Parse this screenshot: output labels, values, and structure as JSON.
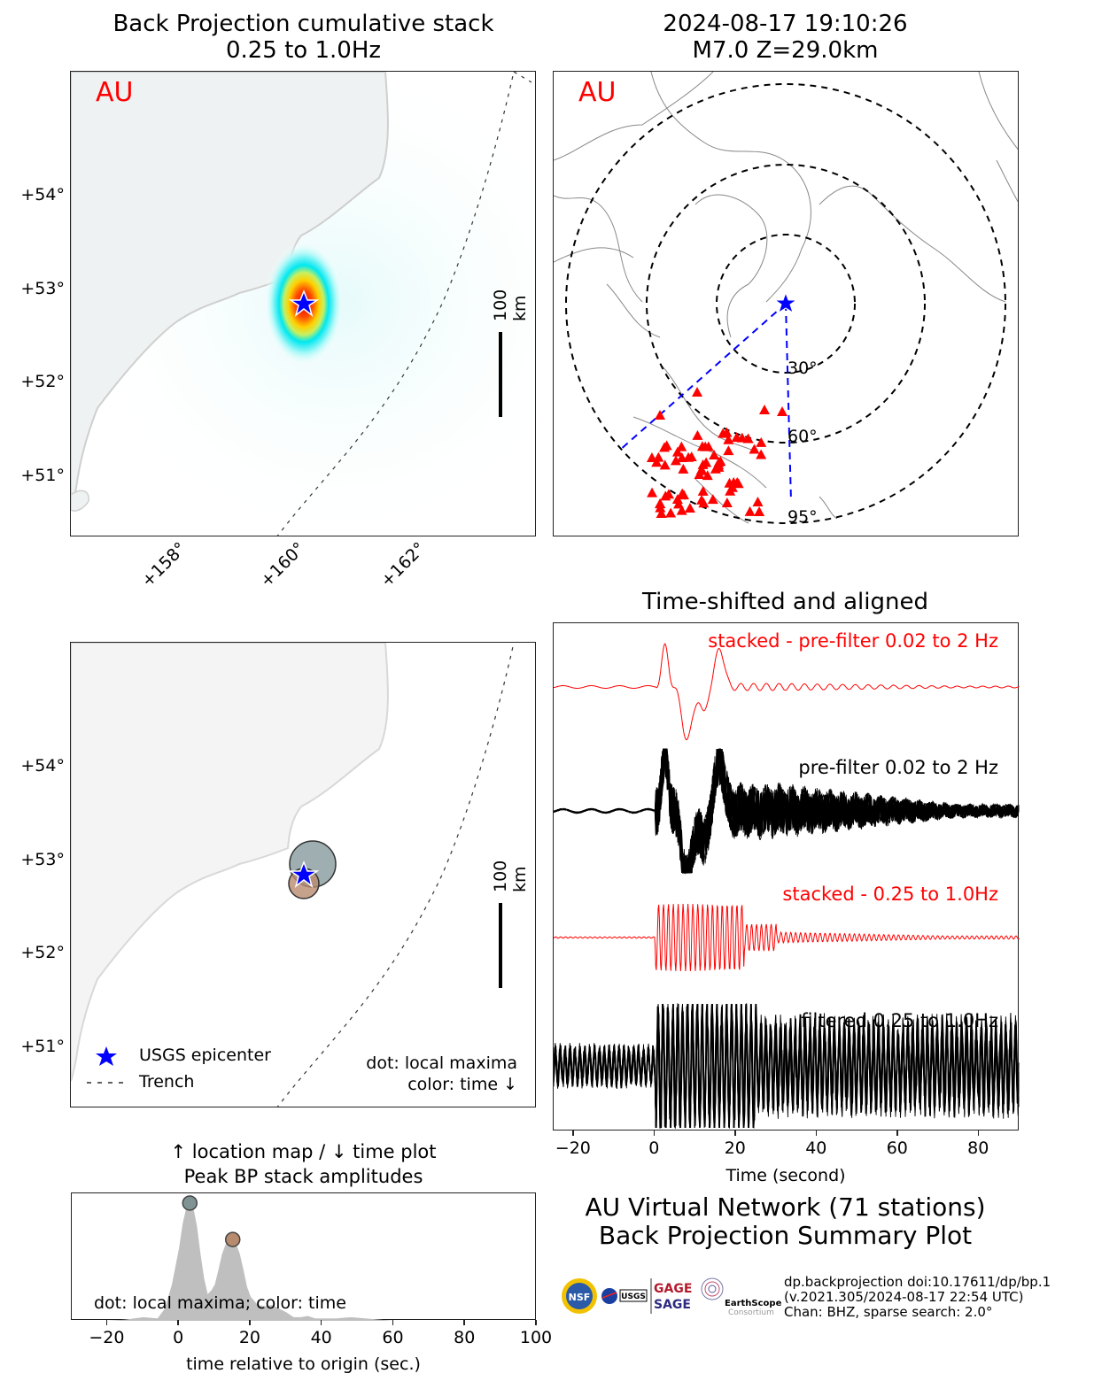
{
  "map_top": {
    "title_line1": "Back Projection cumulative stack",
    "title_line2": "0.25 to 1.0Hz",
    "network_label": "AU",
    "lat_ticks": [
      "+54°",
      "+53°",
      "+52°",
      "+51°"
    ],
    "lon_ticks": [
      "+158°",
      "+160°",
      "+162°"
    ],
    "scale_label": "100 km",
    "epicenter": {
      "lat": 52.8,
      "lon": 160.0
    }
  },
  "station_map": {
    "title_line1": "2024-08-17 19:10:26",
    "title_line2": "M7.0 Z=29.0km",
    "network_label": "AU",
    "ring_labels": [
      "30°",
      "60°",
      "95°"
    ],
    "station_count": 71
  },
  "map_bottom": {
    "lat_ticks": [
      "+54°",
      "+53°",
      "+52°",
      "+51°"
    ],
    "scale_label": "100 km",
    "legend": {
      "epicenter": "USGS epicenter",
      "trench": "Trench"
    },
    "note_line1": "dot: local maxima",
    "note_line2": "color: time ↓",
    "maxima": [
      {
        "name": "maximum-1",
        "color": "#7f9395",
        "time": 3
      },
      {
        "name": "maximum-2",
        "color": "#b88a6e",
        "time": 15
      }
    ]
  },
  "colors": {
    "accent_red": "#ff0000",
    "epicenter_blue": "#0000ff",
    "fill_gray": "#bfbfbf"
  },
  "chart_data": [
    {
      "type": "area",
      "title": "Peak BP stack amplitudes",
      "title_top": "↑ location map / ↓ time plot",
      "xlabel": "time relative to origin (sec.)",
      "ylabel": "",
      "xlim": [
        -30,
        100
      ],
      "ylim": [
        0,
        1.05
      ],
      "xticks": [
        -20,
        0,
        20,
        40,
        60,
        80,
        100
      ],
      "xtick_labels": [
        "−20",
        "0",
        "20",
        "40",
        "60",
        "80",
        "100"
      ],
      "annotation": "dot: local maxima; color: time",
      "x": [
        -30,
        -20,
        -15,
        -10,
        -6,
        -4,
        -2,
        0,
        1,
        2,
        3,
        4,
        5,
        6,
        7,
        8,
        9,
        10,
        11,
        12,
        13,
        14,
        15,
        16,
        17,
        18,
        19,
        20,
        22,
        24,
        26,
        28,
        30,
        32,
        34,
        36,
        38,
        40,
        44,
        48,
        52,
        56,
        60,
        80,
        100
      ],
      "y": [
        0,
        0,
        0.01,
        0.03,
        0.02,
        0.1,
        0.3,
        0.6,
        0.8,
        0.93,
        0.97,
        0.93,
        0.78,
        0.55,
        0.35,
        0.22,
        0.25,
        0.3,
        0.42,
        0.55,
        0.63,
        0.66,
        0.67,
        0.63,
        0.55,
        0.42,
        0.28,
        0.2,
        0.13,
        0.12,
        0.13,
        0.1,
        0.07,
        0.03,
        0.03,
        0.04,
        0.02,
        0.02,
        0.02,
        0.03,
        0.02,
        0.01,
        0,
        0,
        0
      ],
      "markers": [
        {
          "x": 3,
          "y": 0.97,
          "color": "#7f9395"
        },
        {
          "x": 15,
          "y": 0.67,
          "color": "#b88a6e"
        }
      ]
    },
    {
      "type": "line",
      "title": "Time-shifted and aligned",
      "xlabel": "Time (second)",
      "ylabel": "",
      "xlim": [
        -25,
        90
      ],
      "xticks": [
        -20,
        0,
        20,
        40,
        60,
        80
      ],
      "xtick_labels": [
        "−20",
        "0",
        "20",
        "40",
        "60",
        "80"
      ],
      "series": [
        {
          "name": "stacked - pre-filter 0.02 to 2 Hz",
          "color": "#ff0000",
          "kind": "stack"
        },
        {
          "name": "pre-filter 0.02 to 2 Hz",
          "color": "#000000",
          "kind": "traces"
        },
        {
          "name": "stacked - 0.25 to 1.0Hz",
          "color": "#ff0000",
          "kind": "stack"
        },
        {
          "name": "filtered 0.25 to 1.0Hz",
          "color": "#000000",
          "kind": "traces"
        }
      ]
    }
  ],
  "summary": {
    "line1": "AU Virtual Network (71 stations)",
    "line2": "Back Projection Summary Plot"
  },
  "credits": {
    "line1": "dp.backprojection doi:10.17611/dp/bp.1",
    "line2": "(v.2021.305/2024-08-17 22:54 UTC)",
    "line3": "Chan: BHZ, sparse search: 2.0°",
    "logos": [
      "NSF",
      "NASA",
      "USGS",
      "GAGE",
      "SAGE",
      "EarthScope Consortium"
    ]
  }
}
